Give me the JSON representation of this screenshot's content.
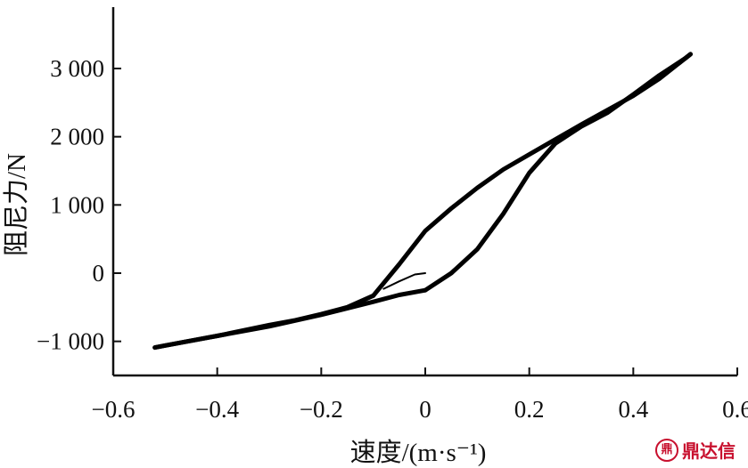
{
  "chart_data": {
    "type": "line",
    "title": "",
    "xlabel": "速度/(m·s⁻¹)",
    "ylabel": "阻尼力/N",
    "xlim": [
      -0.6,
      0.6
    ],
    "ylim": [
      -1500,
      3900
    ],
    "x_ticks": [
      -0.6,
      -0.4,
      -0.2,
      0,
      0.2,
      0.4,
      0.6
    ],
    "x_tick_labels": [
      "−0.6",
      "−0.4",
      "−0.2",
      "0",
      "0.2",
      "0.4",
      "0.6"
    ],
    "y_ticks": [
      -1000,
      0,
      1000,
      2000,
      3000
    ],
    "y_tick_labels": [
      "−1 000",
      "0",
      "1 000",
      "2 000",
      "3 000"
    ],
    "grid": false,
    "series": [
      {
        "color": "#000000",
        "x": [
          0,
          0.05,
          0.1,
          0.15,
          0.2,
          0.25,
          0.3,
          0.35,
          0.4,
          0.45,
          0.5,
          0.51
        ],
        "y": [
          -250,
          0,
          350,
          870,
          1470,
          1900,
          2150,
          2350,
          2620,
          2900,
          3150,
          3210
        ]
      },
      {
        "color": "#000000",
        "x": [
          0.51,
          0.45,
          0.4,
          0.3,
          0.2,
          0.15,
          0.1,
          0.05,
          0,
          -0.05,
          -0.1
        ],
        "y": [
          3210,
          2850,
          2600,
          2180,
          1740,
          1520,
          1250,
          950,
          620,
          130,
          -330
        ]
      },
      {
        "color": "#000000",
        "x": [
          -0.1,
          -0.15,
          -0.2,
          -0.25,
          -0.3,
          -0.4,
          -0.5,
          -0.52
        ],
        "y": [
          -330,
          -500,
          -600,
          -690,
          -760,
          -920,
          -1060,
          -1090
        ]
      },
      {
        "color": "#000000",
        "x": [
          -0.52,
          -0.45,
          -0.4,
          -0.3,
          -0.2,
          -0.1,
          -0.05,
          0
        ],
        "y": [
          -1090,
          -990,
          -920,
          -780,
          -610,
          -420,
          -320,
          -250
        ]
      },
      {
        "color": "#000000",
        "x": [
          -0.08,
          -0.05,
          -0.02,
          0
        ],
        "y": [
          -230,
          -120,
          -20,
          0
        ]
      }
    ]
  },
  "watermark": {
    "seal": "鼎",
    "text": "鼎达信",
    "color": "#c8102e"
  }
}
